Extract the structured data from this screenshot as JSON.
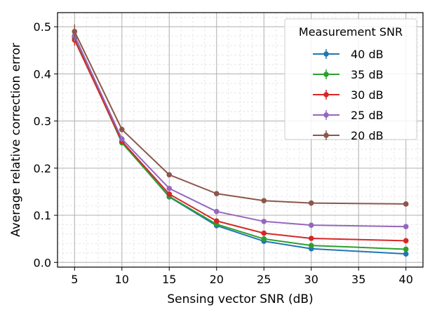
{
  "chart_data": {
    "type": "line",
    "title": "",
    "xlabel": "Sensing vector SNR (dB)",
    "ylabel": "Average relative correction error",
    "xlim": [
      3.2,
      41.8
    ],
    "ylim": [
      -0.01,
      0.53
    ],
    "x": [
      5,
      10,
      15,
      20,
      25,
      30,
      40
    ],
    "xticks": [
      5,
      10,
      15,
      20,
      25,
      30,
      35,
      40
    ],
    "yticks": [
      0.0,
      0.1,
      0.2,
      0.3,
      0.4,
      0.5
    ],
    "ytick_labels": [
      "0.0",
      "0.1",
      "0.2",
      "0.3",
      "0.4",
      "0.5"
    ],
    "grid": true,
    "minor_grid": true,
    "legend": {
      "title": "Measurement SNR",
      "position": "top-right"
    },
    "series": [
      {
        "name": "40 dB",
        "color": "#1f77b4",
        "values": [
          0.478,
          0.255,
          0.139,
          0.078,
          0.045,
          0.029,
          0.018
        ],
        "errors": [
          0.012,
          0.006,
          0.004,
          0.003,
          0.002,
          0.002,
          0.002
        ]
      },
      {
        "name": "35 dB",
        "color": "#2ca02c",
        "values": [
          0.476,
          0.254,
          0.14,
          0.081,
          0.05,
          0.036,
          0.028
        ],
        "errors": [
          0.012,
          0.006,
          0.004,
          0.003,
          0.002,
          0.002,
          0.002
        ]
      },
      {
        "name": "30 dB",
        "color": "#d62728",
        "values": [
          0.472,
          0.257,
          0.145,
          0.088,
          0.062,
          0.051,
          0.046
        ],
        "errors": [
          0.012,
          0.006,
          0.004,
          0.003,
          0.002,
          0.002,
          0.002
        ]
      },
      {
        "name": "25 dB",
        "color": "#9467bd",
        "values": [
          0.481,
          0.262,
          0.157,
          0.108,
          0.087,
          0.079,
          0.076
        ],
        "errors": [
          0.012,
          0.006,
          0.004,
          0.003,
          0.002,
          0.002,
          0.002
        ]
      },
      {
        "name": "20 dB",
        "color": "#8c564b",
        "values": [
          0.49,
          0.282,
          0.186,
          0.146,
          0.131,
          0.126,
          0.124
        ],
        "errors": [
          0.015,
          0.006,
          0.004,
          0.003,
          0.002,
          0.002,
          0.002
        ]
      }
    ]
  }
}
